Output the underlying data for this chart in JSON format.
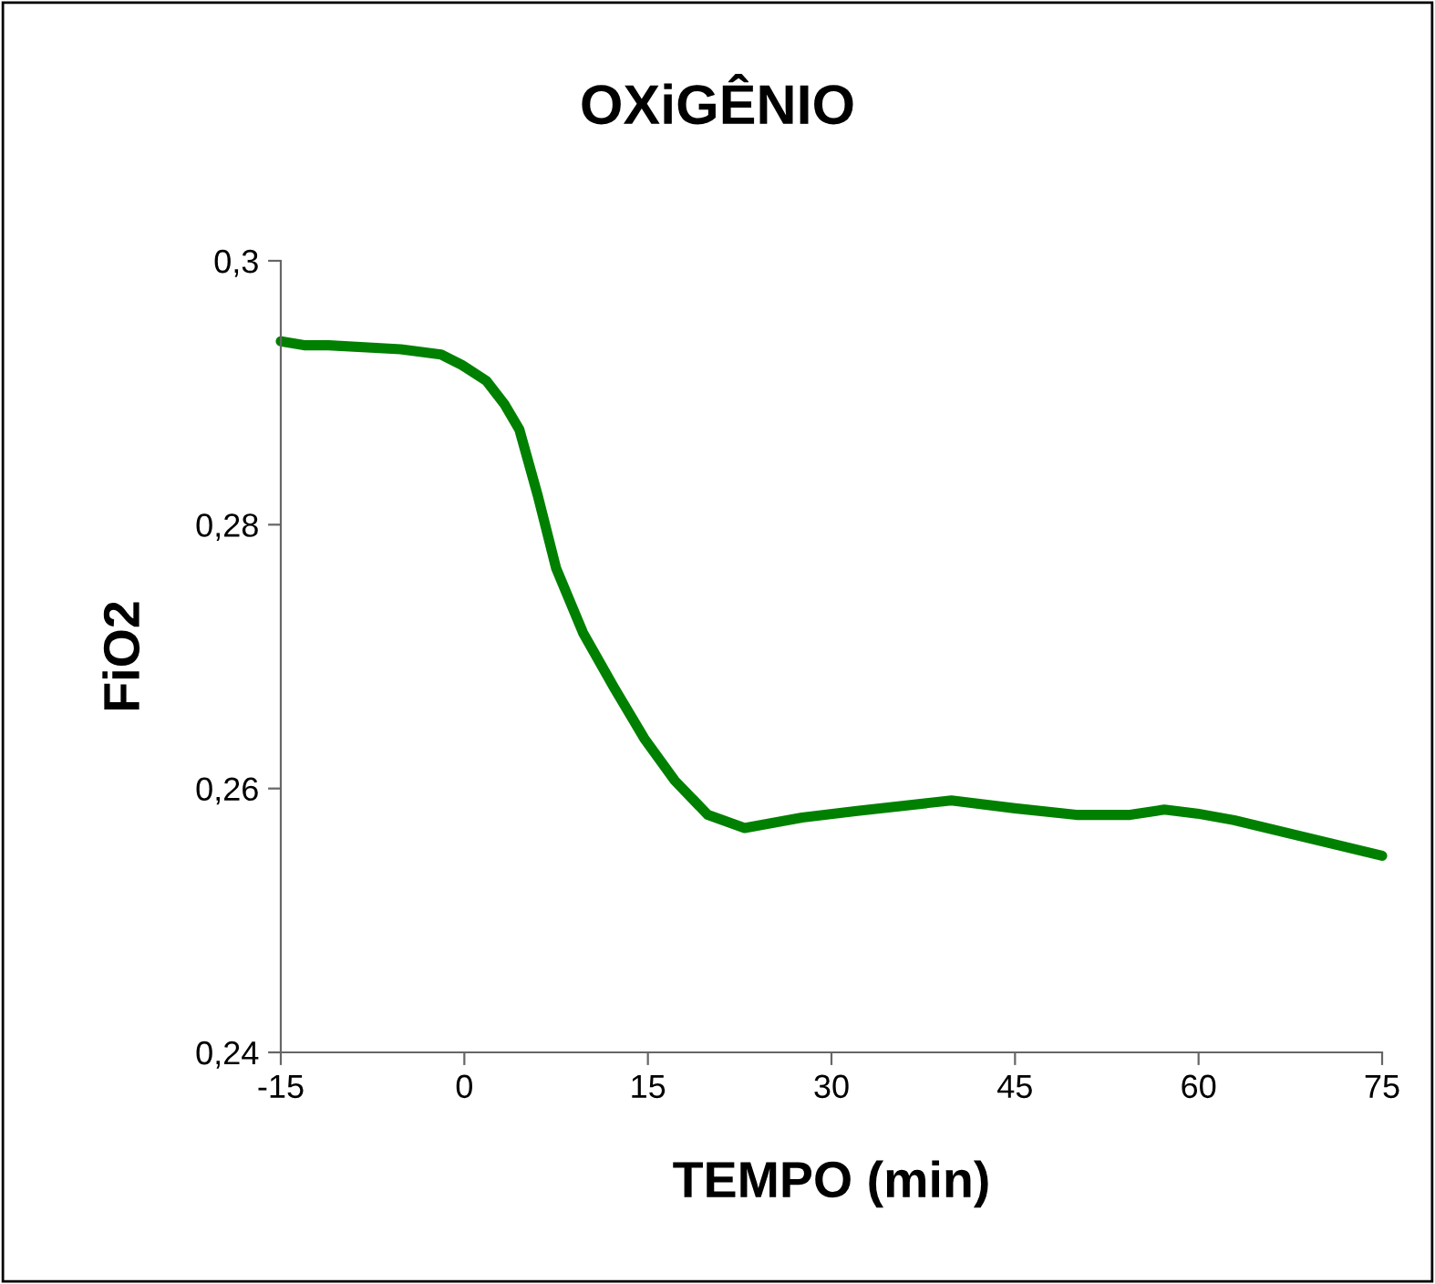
{
  "chart_data": {
    "type": "line",
    "title": "OXiGÊNIO",
    "xlabel": "TEMPO (min)",
    "ylabel": "FiO2",
    "series": [
      {
        "color": "#008000",
        "x": [
          -15,
          -13.1,
          -11.1,
          -5.2,
          -1.9,
          -0.2,
          1.8,
          3.3,
          4.5,
          6.0,
          7.5,
          9.7,
          12.2,
          14.7,
          17.2,
          19.9,
          22.9,
          27.6,
          32.1,
          39.8,
          45,
          50,
          54.4,
          57.2,
          59.9,
          62.9,
          75
        ],
        "values": [
          0.2939,
          0.2936,
          0.2936,
          0.2933,
          0.2929,
          0.2921,
          0.2909,
          0.2891,
          0.2872,
          0.2822,
          0.2767,
          0.2718,
          0.2677,
          0.2638,
          0.2606,
          0.258,
          0.257,
          0.2578,
          0.2583,
          0.2591,
          0.2585,
          0.258,
          0.258,
          0.2584,
          0.2581,
          0.2576,
          0.2549
        ]
      }
    ],
    "xlim": [
      -15,
      75
    ],
    "xticks": [
      -15,
      0,
      15,
      30,
      45,
      60,
      75
    ],
    "ylim": [
      0.24,
      0.3
    ],
    "yticks": [
      {
        "value": 0.24,
        "label": "0,24"
      },
      {
        "value": 0.26,
        "label": "0,26"
      },
      {
        "value": 0.28,
        "label": "0,28"
      },
      {
        "value": 0.3,
        "label": "0,3"
      }
    ],
    "grid": false,
    "marker": "none",
    "line_style": "solid"
  }
}
